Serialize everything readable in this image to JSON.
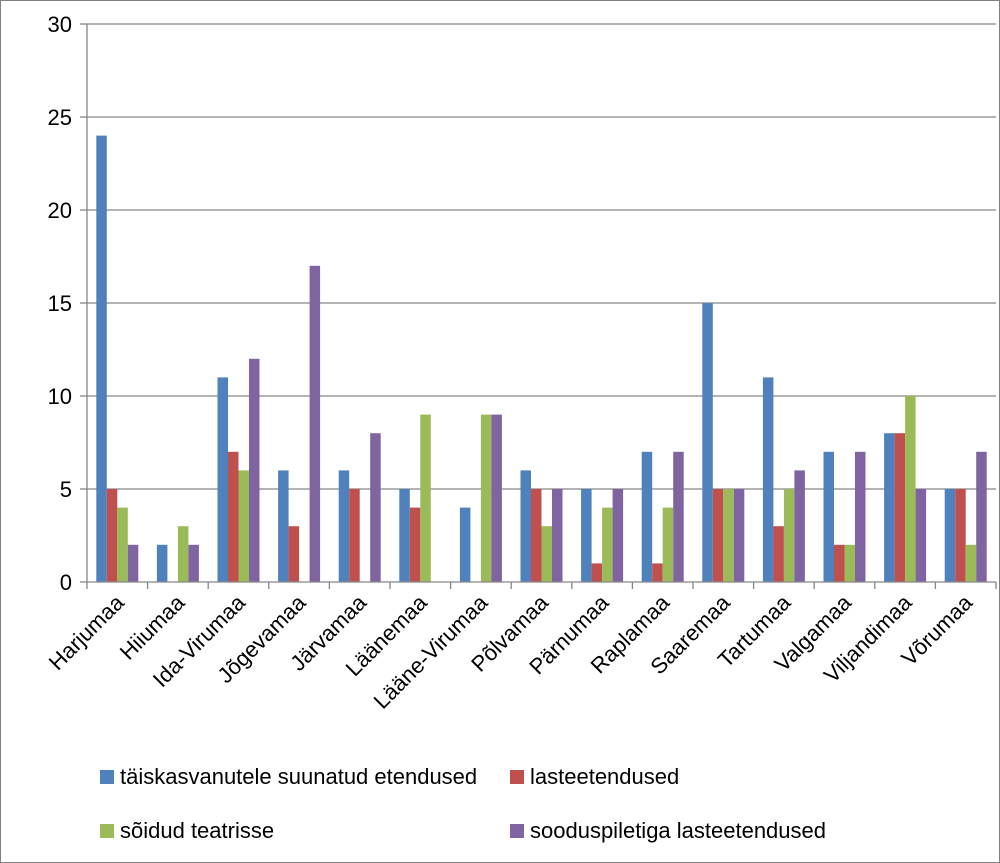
{
  "chart_data": {
    "type": "bar",
    "categories": [
      "Harjumaa",
      "Hiiumaa",
      "Ida-Virumaa",
      "Jõgevamaa",
      "Järvamaa",
      "Läänemaa",
      "Lääne-Virumaa",
      "Põlvamaa",
      "Pärnumaa",
      "Raplamaa",
      "Saaremaa",
      "Tartumaa",
      "Valgamaa",
      "Viljandimaa",
      "Võrumaa"
    ],
    "series": [
      {
        "name": "täiskasvanutele suunatud etendused",
        "color": "#4F81BD",
        "values": [
          24,
          2,
          11,
          6,
          6,
          5,
          4,
          6,
          5,
          7,
          15,
          11,
          7,
          8,
          5
        ]
      },
      {
        "name": "lasteetendused",
        "color": "#C0504D",
        "values": [
          5,
          0,
          7,
          3,
          5,
          4,
          0,
          5,
          1,
          1,
          5,
          3,
          2,
          8,
          5
        ]
      },
      {
        "name": "sõidud teatrisse",
        "color": "#9BBB59",
        "values": [
          4,
          3,
          6,
          0,
          0,
          9,
          9,
          3,
          4,
          4,
          5,
          5,
          2,
          10,
          2
        ]
      },
      {
        "name": "sooduspiletiga lasteetendused",
        "color": "#8064A2",
        "values": [
          2,
          2,
          12,
          17,
          8,
          0,
          9,
          5,
          5,
          7,
          5,
          6,
          7,
          5,
          7
        ]
      }
    ],
    "y_ticks": [
      "0",
      "5",
      "10",
      "15",
      "20",
      "25",
      "30"
    ],
    "ylim": [
      0,
      30
    ],
    "grid": true,
    "legend_position": "bottom"
  }
}
